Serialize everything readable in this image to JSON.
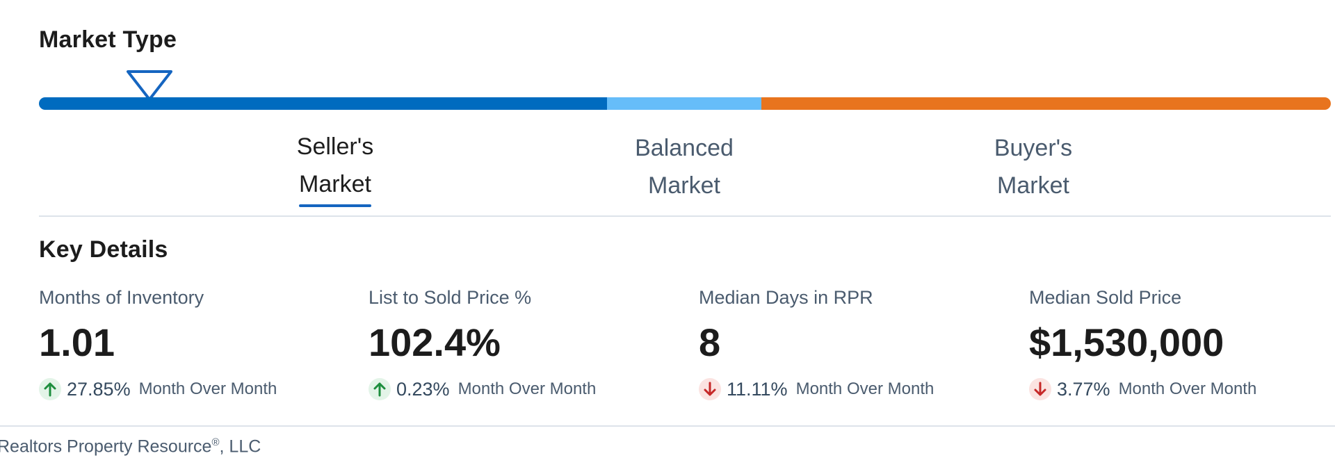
{
  "market_type": {
    "title": "Market Type",
    "segment_colors": [
      "#006bbf",
      "#66bdf9",
      "#e8741e"
    ],
    "indicator_color": "#1565c0",
    "labels": [
      {
        "line1": "Seller's",
        "line2": "Market",
        "active": true
      },
      {
        "line1": "Balanced",
        "line2": "Market",
        "active": false
      },
      {
        "line1": "Buyer's",
        "line2": "Market",
        "active": false
      }
    ]
  },
  "key_details": {
    "title": "Key Details",
    "stats": [
      {
        "label": "Months of Inventory",
        "value": "1.01",
        "direction": "up",
        "change": "27.85%",
        "period": "Month Over Month"
      },
      {
        "label": "List to Sold Price %",
        "value": "102.4%",
        "direction": "up",
        "change": "0.23%",
        "period": "Month Over Month"
      },
      {
        "label": "Median Days in RPR",
        "value": "8",
        "direction": "down",
        "change": "11.11%",
        "period": "Month Over Month"
      },
      {
        "label": "Median Sold Price",
        "value": "$1,530,000",
        "direction": "down",
        "change": "3.77%",
        "period": "Month Over Month"
      }
    ],
    "up_color": "#1e8e3e",
    "down_color": "#c62828"
  },
  "footer": {
    "text": "Realtors Property Resource",
    "registered_mark": "®",
    "suffix": ", LLC"
  }
}
